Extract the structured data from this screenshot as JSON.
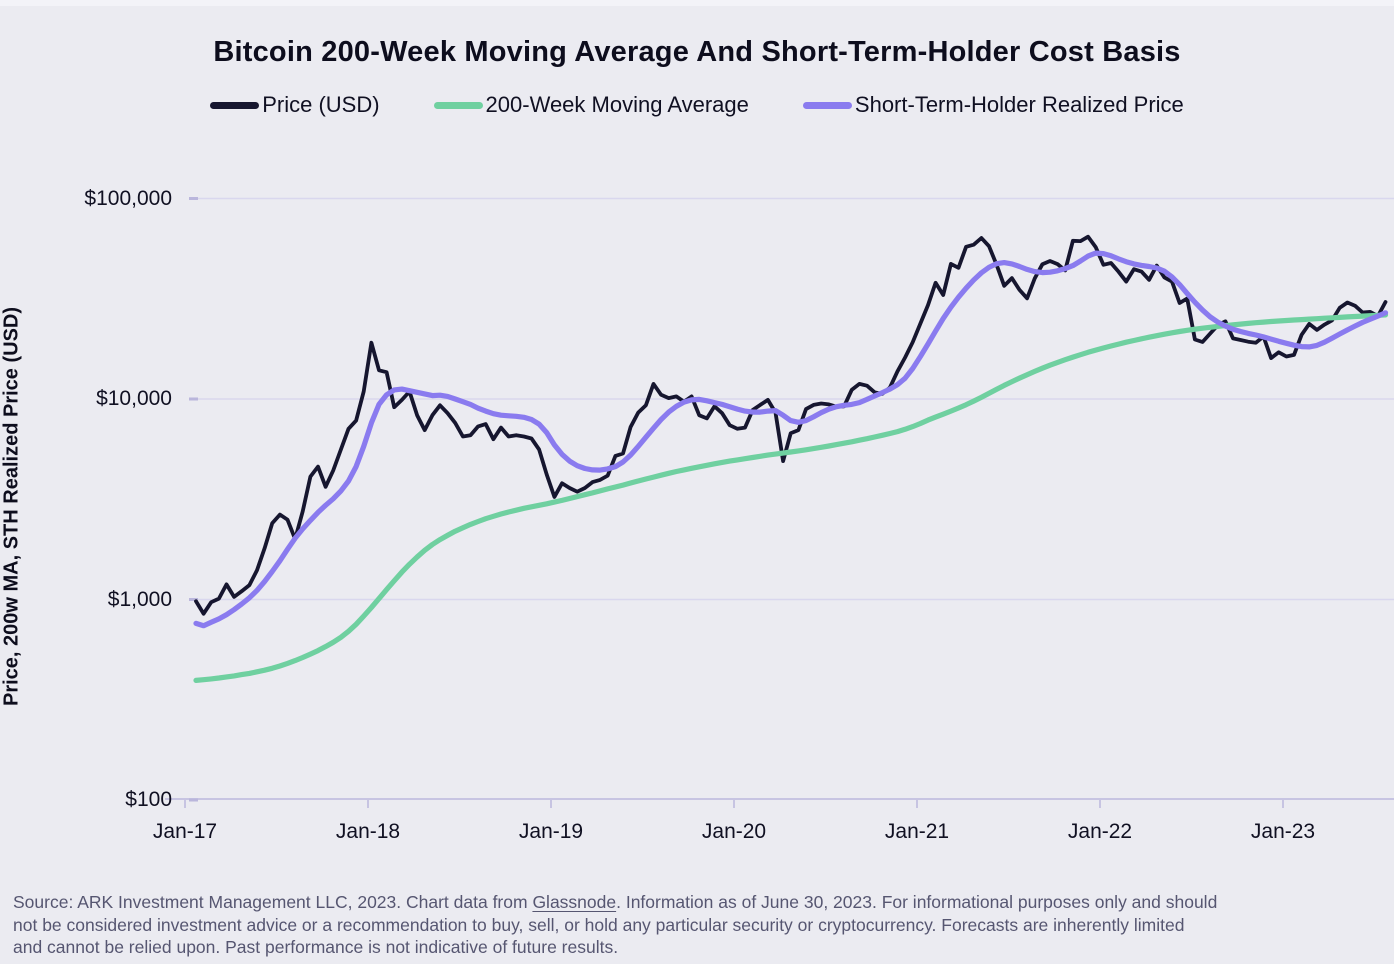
{
  "title": "Bitcoin 200-Week Moving Average And Short-Term-Holder Cost Basis",
  "y_axis_label": "Price, 200w MA, STH Realized Price (USD)",
  "footer": {
    "line1_before": "Source: ARK Investment Management LLC, 2023. Chart data from ",
    "link": "Glassnode",
    "line1_after": ". Information as of June 30, 2023. For informational purposes only and should",
    "line2": "not be considered investment advice or a recommendation to buy, sell, or hold any particular security or cryptocurrency. Forecasts are inherently limited",
    "line3": "and cannot be relied upon. Past performance is not indicative of future results."
  },
  "colors": {
    "background": "#ebebf1",
    "gridline": "#d9d7ee",
    "axis": "#c7c4e2",
    "tick_stub": "#bab6dc",
    "price": "#16162f",
    "moving_average": "#6fd0a0",
    "sth_realized": "#8a7bef",
    "footer_text": "#565671"
  },
  "chart_data": {
    "type": "line",
    "title": "Bitcoin 200-Week Moving Average And Short-Term-Holder Cost Basis",
    "xlabel": "",
    "ylabel": "Price, 200w MA, STH Realized Price (USD)",
    "y_scale": "log",
    "ylim": [
      100,
      140000
    ],
    "grid": true,
    "legend_position": "top",
    "x_unit_note": "t = years since Jan-2017; series sampled semi-monthly (dt = 1/24 year)",
    "x_ticks": [
      {
        "t": 0,
        "label": "Jan-17"
      },
      {
        "t": 1,
        "label": "Jan-18"
      },
      {
        "t": 2,
        "label": "Jan-19"
      },
      {
        "t": 3,
        "label": "Jan-20"
      },
      {
        "t": 4,
        "label": "Jan-21"
      },
      {
        "t": 5,
        "label": "Jan-22"
      },
      {
        "t": 6,
        "label": "Jan-23"
      }
    ],
    "y_ticks": [
      {
        "value": 100,
        "label": "$100"
      },
      {
        "value": 1000,
        "label": "$1,000"
      },
      {
        "value": 10000,
        "label": "$10,000"
      },
      {
        "value": 100000,
        "label": "$100,000"
      }
    ],
    "series": [
      {
        "name": "Price (USD)",
        "color": "#16162f",
        "width": 3.8,
        "t0": 0.06,
        "dt": 0.0416667,
        "values": [
          980,
          850,
          970,
          1010,
          1190,
          1030,
          1100,
          1180,
          1400,
          1800,
          2400,
          2650,
          2500,
          2000,
          2750,
          4100,
          4600,
          3650,
          4400,
          5600,
          7100,
          7800,
          10900,
          19100,
          13900,
          13600,
          9100,
          9900,
          10900,
          8300,
          7000,
          8300,
          9300,
          8500,
          7600,
          6500,
          6600,
          7300,
          7500,
          6300,
          7200,
          6500,
          6600,
          6500,
          6350,
          5600,
          4200,
          3250,
          3800,
          3600,
          3450,
          3600,
          3850,
          3950,
          4150,
          5200,
          5350,
          7250,
          8550,
          9300,
          11900,
          10500,
          10100,
          10300,
          9700,
          10300,
          8300,
          8000,
          9200,
          8500,
          7400,
          7100,
          7200,
          8800,
          9350,
          9900,
          8550,
          4900,
          6750,
          7000,
          8900,
          9350,
          9500,
          9400,
          9150,
          9200,
          11100,
          11900,
          11650,
          10800,
          10600,
          11400,
          13750,
          16100,
          19200,
          23800,
          29400,
          38000,
          33000,
          47200,
          45100,
          57400,
          58800,
          63500,
          57800,
          46700,
          36700,
          40100,
          35000,
          31800,
          39900,
          47000,
          48800,
          47100,
          43800,
          61500,
          61300,
          64500,
          57200,
          46700,
          47700,
          43100,
          38500,
          44400,
          43200,
          39300,
          46300,
          40400,
          38500,
          30100,
          31700,
          19800,
          19250,
          21200,
          23300,
          24400,
          20050,
          19700,
          19300,
          19100,
          20500,
          16000,
          17100,
          16300,
          16600,
          20900,
          23700,
          22100,
          23500,
          24700,
          28500,
          30300,
          29200,
          27000,
          27200,
          25900,
          30450
        ]
      },
      {
        "name": "200-Week Moving Average",
        "color": "#6fd0a0",
        "width": 5.2,
        "t0": 0.06,
        "dt": 0.0416667,
        "values": [
          395,
          398,
          402,
          406,
          411,
          416,
          422,
          428,
          436,
          444,
          454,
          466,
          480,
          496,
          514,
          534,
          556,
          582,
          612,
          648,
          694,
          752,
          826,
          912,
          1010,
          1120,
          1240,
          1370,
          1500,
          1630,
          1760,
          1880,
          1990,
          2090,
          2190,
          2280,
          2370,
          2450,
          2530,
          2600,
          2670,
          2730,
          2790,
          2850,
          2900,
          2950,
          3000,
          3060,
          3120,
          3190,
          3260,
          3330,
          3400,
          3480,
          3560,
          3640,
          3720,
          3810,
          3900,
          3990,
          4080,
          4170,
          4260,
          4350,
          4430,
          4510,
          4590,
          4670,
          4750,
          4830,
          4900,
          4970,
          5040,
          5110,
          5180,
          5250,
          5310,
          5370,
          5440,
          5510,
          5580,
          5660,
          5740,
          5830,
          5920,
          6020,
          6120,
          6230,
          6340,
          6460,
          6590,
          6730,
          6880,
          7060,
          7280,
          7550,
          7850,
          8120,
          8400,
          8700,
          9020,
          9370,
          9760,
          10200,
          10680,
          11180,
          11690,
          12200,
          12710,
          13220,
          13730,
          14240,
          14740,
          15230,
          15710,
          16180,
          16640,
          17090,
          17530,
          17960,
          18380,
          18790,
          19190,
          19580,
          19960,
          20330,
          20690,
          21040,
          21380,
          21700,
          22000,
          22280,
          22540,
          22780,
          23010,
          23230,
          23440,
          23640,
          23830,
          24010,
          24180,
          24340,
          24490,
          24630,
          24770,
          24900,
          25030,
          25160,
          25290,
          25420,
          25540,
          25660,
          25780,
          25900,
          26020,
          26140,
          26280
        ]
      },
      {
        "name": "Short-Term-Holder Realized Price",
        "color": "#8a7bef",
        "width": 5.2,
        "t0": 0.06,
        "dt": 0.0416667,
        "values": [
          760,
          740,
          770,
          800,
          840,
          890,
          950,
          1020,
          1110,
          1230,
          1380,
          1560,
          1780,
          2020,
          2250,
          2480,
          2720,
          2950,
          3180,
          3480,
          3900,
          4600,
          5800,
          7600,
          9400,
          10500,
          11100,
          11200,
          11000,
          10800,
          10600,
          10400,
          10450,
          10300,
          10000,
          9700,
          9400,
          9000,
          8700,
          8450,
          8300,
          8250,
          8200,
          8100,
          7900,
          7500,
          6800,
          5900,
          5300,
          4900,
          4650,
          4500,
          4430,
          4420,
          4480,
          4600,
          4850,
          5250,
          5800,
          6450,
          7150,
          7900,
          8600,
          9200,
          9650,
          9900,
          9950,
          9800,
          9600,
          9400,
          9150,
          8900,
          8700,
          8600,
          8600,
          8700,
          8750,
          8300,
          7800,
          7650,
          7800,
          8150,
          8550,
          8900,
          9150,
          9300,
          9400,
          9600,
          9950,
          10350,
          10750,
          11200,
          11800,
          12700,
          14200,
          16300,
          18800,
          21800,
          25200,
          28700,
          32200,
          35700,
          39200,
          42600,
          45400,
          47300,
          47900,
          47200,
          45800,
          44300,
          43200,
          42700,
          42900,
          43600,
          44700,
          46300,
          48800,
          51600,
          53400,
          53100,
          51800,
          50000,
          48400,
          47200,
          46400,
          45800,
          45000,
          43400,
          40600,
          37200,
          33600,
          30400,
          27800,
          25700,
          24200,
          23100,
          22300,
          21700,
          21250,
          20850,
          20400,
          19900,
          19400,
          18950,
          18550,
          18250,
          18200,
          18500,
          19200,
          20100,
          21100,
          22100,
          23100,
          24100,
          25000,
          25900,
          26900
        ]
      }
    ]
  }
}
